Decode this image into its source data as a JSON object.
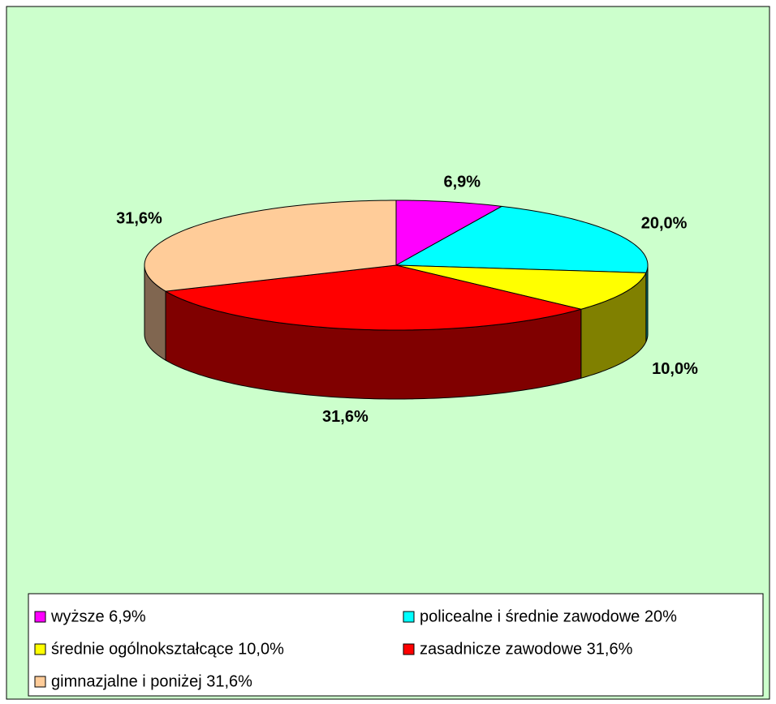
{
  "chart_data": {
    "type": "pie3d",
    "categories": [
      "wyższe 6,9%",
      "policealne i średnie zawodowe  20%",
      "średnie ogólnokształcące 10,0%",
      "zasadnicze zawodowe 31,6%",
      "gimnazjalne i poniżej 31,6%"
    ],
    "values": [
      6.9,
      20.0,
      10.0,
      31.6,
      31.6
    ],
    "value_labels": [
      "6,9%",
      "20,0%",
      "10,0%",
      "31,6%",
      "31,6%"
    ],
    "colors": [
      "#ff00ff",
      "#00ffff",
      "#ffff00",
      "#ff0000",
      "#ffcc99"
    ],
    "side_colors": [
      "#800080",
      "#008080",
      "#808000",
      "#800000",
      "#806650"
    ],
    "legend": "bottom"
  }
}
